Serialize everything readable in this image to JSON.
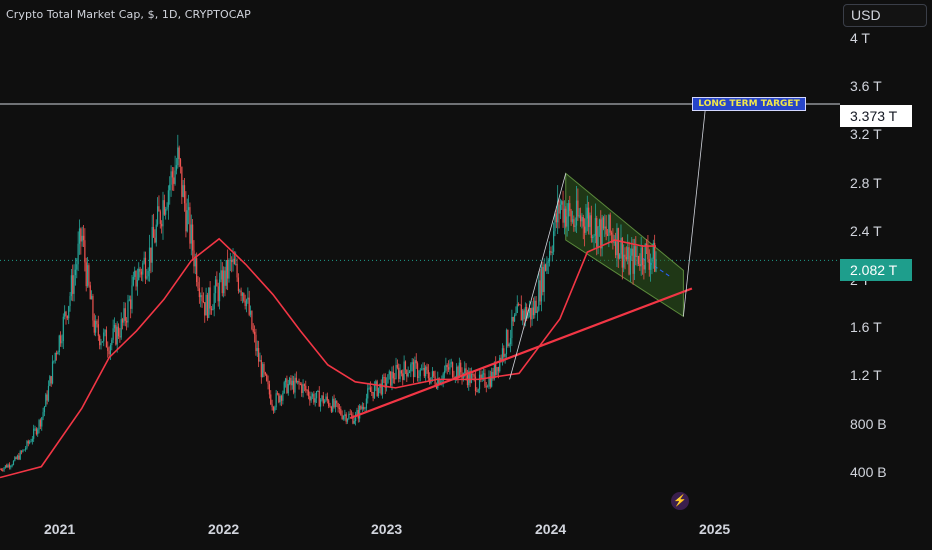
{
  "header": {
    "title": "Crypto Total Market Cap, $, 1D, CRYPTOCAP"
  },
  "currency_button": {
    "label": "USD"
  },
  "colors": {
    "background": "#0f0f0f",
    "moving_average": "#f23645",
    "trendline": "#f23645",
    "channel_fill": "#2d5a1e",
    "price_tag": "#1e9e8c",
    "bull_candle": "#26a69a",
    "bear_candle": "#ef5350",
    "annotation_bg": "#2745c9",
    "annotation_text": "#f2e84a"
  },
  "chart_data": {
    "type": "candlestick",
    "title": "Crypto Total Market Cap, $, 1D, CRYPTOCAP",
    "y_axis": {
      "ticks": [
        "4 T",
        "3.6 T",
        "3.2 T",
        "2.8 T",
        "2.4 T",
        "2 T",
        "1.6 T",
        "1.2 T",
        "800 B",
        "400 B"
      ],
      "tick_values": [
        4000,
        3600,
        3200,
        2800,
        2400,
        2000,
        1600,
        1200,
        800,
        400
      ],
      "unit": "billion USD",
      "range": [
        270,
        4150
      ]
    },
    "x_axis": {
      "ticks": [
        "2021",
        "2022",
        "2023",
        "2024",
        "2025"
      ],
      "range": [
        "2020-10-01",
        "2025-06-01"
      ]
    },
    "price_series": {
      "x": [
        "2020-10-01",
        "2020-11-01",
        "2020-12-01",
        "2021-01-01",
        "2021-02-01",
        "2021-03-01",
        "2021-04-01",
        "2021-05-01",
        "2021-06-01",
        "2021-07-01",
        "2021-08-01",
        "2021-09-01",
        "2021-10-01",
        "2021-11-01",
        "2021-12-01",
        "2022-01-01",
        "2022-02-01",
        "2022-03-01",
        "2022-04-01",
        "2022-05-01",
        "2022-06-01",
        "2022-07-01",
        "2022-08-01",
        "2022-09-01",
        "2022-10-01",
        "2022-11-01",
        "2022-12-01",
        "2023-01-01",
        "2023-02-01",
        "2023-03-01",
        "2023-04-01",
        "2023-05-01",
        "2023-06-01",
        "2023-07-01",
        "2023-08-01",
        "2023-09-01",
        "2023-10-01",
        "2023-11-01",
        "2023-12-01",
        "2024-01-01",
        "2024-02-01",
        "2024-03-01",
        "2024-04-01",
        "2024-05-01",
        "2024-06-01",
        "2024-07-01",
        "2024-08-01",
        "2024-09-01",
        "2024-10-01"
      ],
      "close": [
        360,
        420,
        560,
        780,
        1320,
        1720,
        2300,
        1500,
        1400,
        1550,
        1950,
        2150,
        2600,
        2900,
        2250,
        1700,
        1850,
        2050,
        1800,
        1250,
        900,
        1050,
        1050,
        950,
        920,
        820,
        780,
        990,
        1050,
        1150,
        1200,
        1150,
        1100,
        1200,
        1150,
        1060,
        1120,
        1400,
        1650,
        1650,
        2100,
        2550,
        2400,
        2450,
        2300,
        2300,
        2050,
        2150,
        2082
      ]
    },
    "moving_average": {
      "label": "",
      "x": [
        "2020-10-01",
        "2021-01-01",
        "2021-04-01",
        "2021-06-01",
        "2021-08-01",
        "2021-10-01",
        "2021-12-01",
        "2022-02-01",
        "2022-04-01",
        "2022-06-01",
        "2022-08-01",
        "2022-10-01",
        "2022-12-01",
        "2023-03-01",
        "2023-06-01",
        "2023-09-01",
        "2023-12-01",
        "2024-03-01",
        "2024-05-01",
        "2024-07-01",
        "2024-09-01",
        "2024-10-01"
      ],
      "values": [
        290,
        380,
        860,
        1280,
        1500,
        1760,
        2080,
        2260,
        2050,
        1800,
        1500,
        1220,
        1080,
        1030,
        1100,
        1100,
        1150,
        1600,
        2150,
        2250,
        2200,
        2200
      ]
    },
    "support_trendline": {
      "x": [
        "2022-11-20",
        "2024-12-20"
      ],
      "values": [
        780,
        1850
      ]
    },
    "descending_channel": {
      "upper": {
        "x": [
          "2024-03-14",
          "2024-12-01"
        ],
        "values": [
          2800,
          2000
        ]
      },
      "lower": {
        "x": [
          "2024-03-14",
          "2024-12-01"
        ],
        "values": [
          2250,
          1620
        ]
      },
      "midline": {
        "x": [
          "2024-09-01",
          "2024-11-01"
        ],
        "values": [
          2100,
          1950
        ]
      }
    },
    "rise_line": {
      "x": [
        "2023-11-10",
        "2024-03-14"
      ],
      "values": [
        1100,
        2800
      ]
    },
    "target_projection": {
      "x": [
        "2024-12-01",
        "2025-01-20"
      ],
      "values": [
        1620,
        3373
      ]
    },
    "target_level": {
      "value": 3373,
      "label": "3.373 T"
    },
    "last_price": {
      "value": 2082,
      "label": "2.082 T"
    },
    "annotation": {
      "text": "LONG TERM TARGET"
    }
  },
  "overlay": {
    "bolt_icon": "lightning-icon"
  }
}
